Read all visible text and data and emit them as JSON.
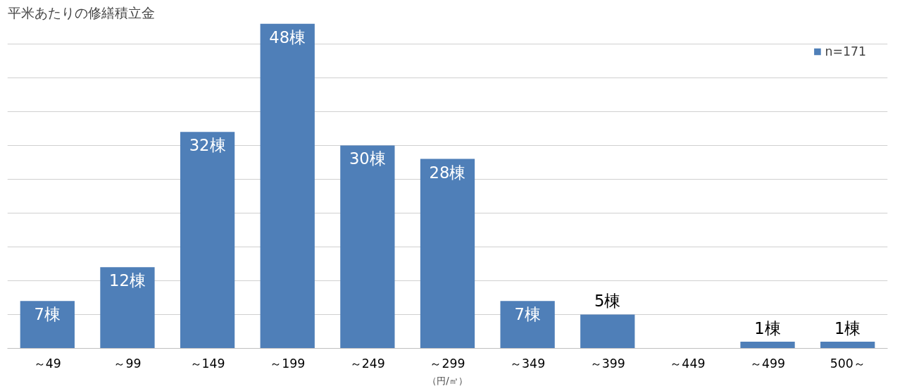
{
  "chart_data": {
    "type": "bar",
    "title": "平米あたりの修繕積立金",
    "xlabel": "（円/㎡）",
    "categories": [
      "～49",
      "～99",
      "～149",
      "～199",
      "～249",
      "～299",
      "～349",
      "～399",
      "～449",
      "～499",
      "500～"
    ],
    "series": [
      {
        "name": "n=171",
        "color": "#4f7fb8",
        "values": [
          7,
          12,
          32,
          48,
          30,
          28,
          7,
          5,
          0,
          1,
          1
        ],
        "value_labels": [
          "7棟",
          "12棟",
          "32棟",
          "48棟",
          "30棟",
          "28棟",
          "7棟",
          "5棟",
          null,
          "1棟",
          "1棟"
        ]
      }
    ],
    "ylim": [
      0,
      48
    ],
    "yticks": [
      {
        "value": 0,
        "label": null
      },
      {
        "value": 5,
        "label": null
      },
      {
        "value": 10,
        "label": null
      },
      {
        "value": 15,
        "label": null
      },
      {
        "value": 20,
        "label": null
      },
      {
        "value": 25,
        "label": null
      },
      {
        "value": 30,
        "label": null
      },
      {
        "value": 35,
        "label": null
      },
      {
        "value": 40,
        "label": null
      },
      {
        "value": 45,
        "label": null
      }
    ],
    "tick_labels": "x",
    "grid": "y",
    "legend": "top right"
  }
}
